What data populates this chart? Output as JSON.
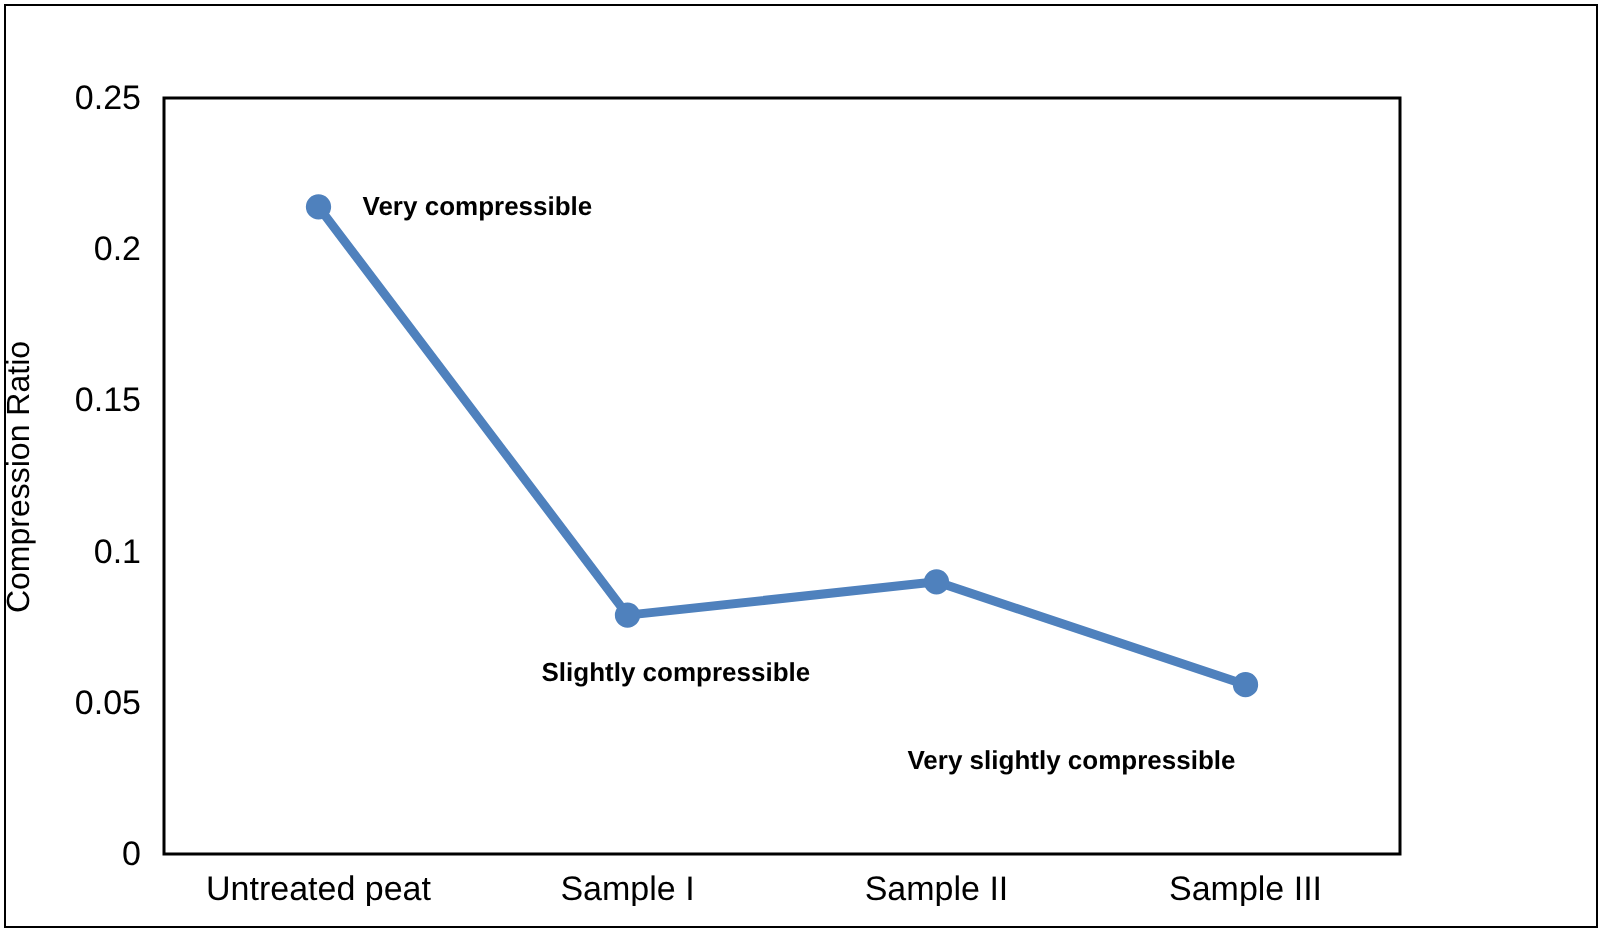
{
  "chart_data": {
    "type": "line",
    "ylabel": "Compression Ratio",
    "categories": [
      "Untreated peat",
      "Sample I",
      "Sample II",
      "Sample III"
    ],
    "series": [
      {
        "color": "#4f81bd",
        "values": [
          0.214,
          0.079,
          0.09,
          0.056
        ]
      }
    ],
    "ylim": [
      0,
      0.25
    ],
    "yticks": [
      0,
      0.05,
      0.1,
      0.15,
      0.2,
      0.25
    ],
    "grid": false,
    "marker": "circle",
    "line_style": "solid",
    "annotations": [
      {
        "text": "Very compressible",
        "x": "Untreated peat",
        "y": 0.214
      },
      {
        "text": "Slightly compressible",
        "x": "Sample I",
        "y": 0.079
      },
      {
        "text": "Very slightly compressible",
        "x": "Sample III",
        "y": 0.056
      }
    ]
  }
}
